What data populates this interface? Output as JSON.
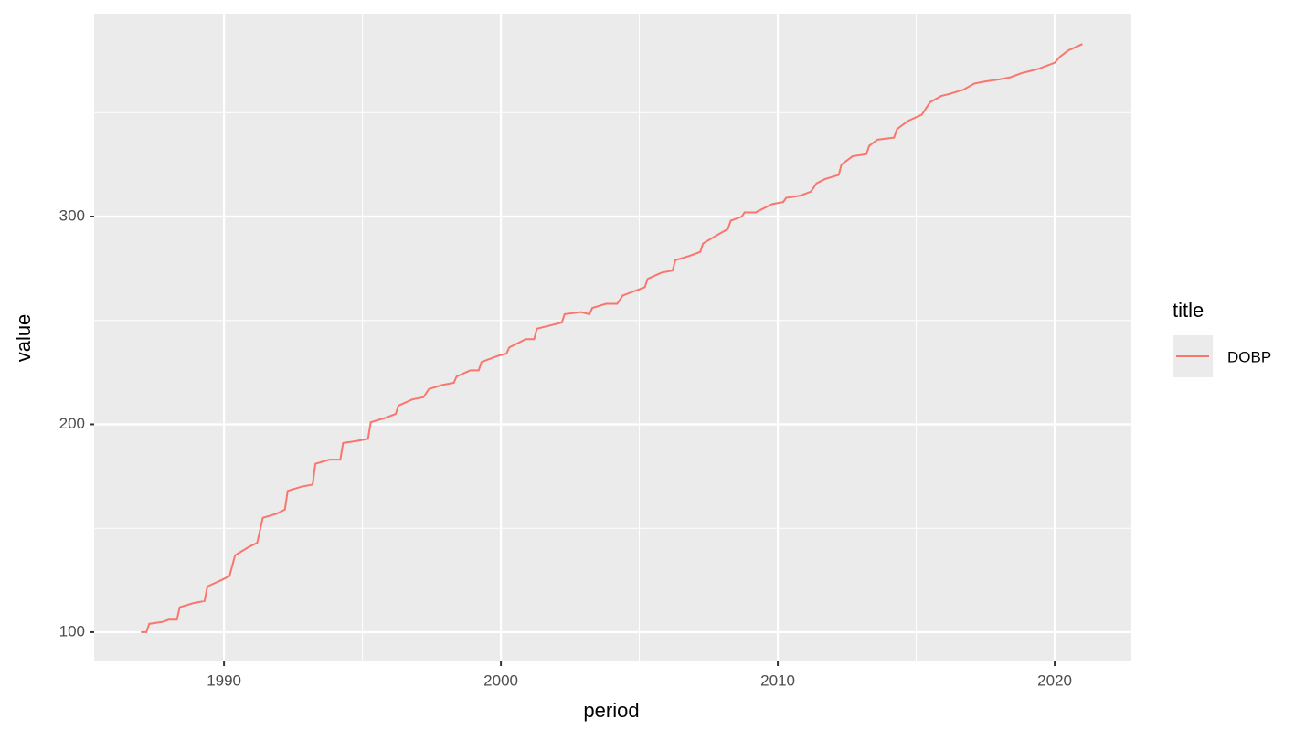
{
  "chart_data": {
    "type": "line",
    "x_label": "period",
    "y_label": "value",
    "legend_title": "title",
    "legend_position": "right",
    "grid": true,
    "xlim": [
      1985.31,
      2022.77
    ],
    "xticks": [
      1990,
      2000,
      2010,
      2020
    ],
    "xminorticks": [
      1995,
      2005,
      2015
    ],
    "ylim": [
      85.9,
      397.6
    ],
    "yticks": [
      100,
      200,
      300
    ],
    "yminorticks": [
      150,
      250,
      350
    ],
    "x": [
      1987.0,
      1987.2,
      1987.3,
      1987.8,
      1988.0,
      1988.3,
      1988.4,
      1988.9,
      1989.3,
      1989.4,
      1989.9,
      1990.2,
      1990.4,
      1990.9,
      1991.2,
      1991.4,
      1991.9,
      1992.2,
      1992.3,
      1992.8,
      1993.2,
      1993.3,
      1993.8,
      1994.2,
      1994.3,
      1994.8,
      1995.2,
      1995.3,
      1995.8,
      1996.2,
      1996.3,
      1996.8,
      1997.2,
      1997.4,
      1997.9,
      1998.3,
      1998.4,
      1998.9,
      1999.2,
      1999.3,
      1999.9,
      2000.2,
      2000.3,
      2000.9,
      2001.2,
      2001.3,
      2001.9,
      2002.2,
      2002.3,
      2002.9,
      2003.2,
      2003.3,
      2003.8,
      2004.2,
      2004.4,
      2004.8,
      2005.2,
      2005.3,
      2005.8,
      2006.2,
      2006.3,
      2006.8,
      2007.2,
      2007.3,
      2007.8,
      2008.2,
      2008.3,
      2008.7,
      2008.8,
      2009.2,
      2009.5,
      2009.8,
      2010.2,
      2010.3,
      2010.8,
      2011.2,
      2011.4,
      2011.7,
      2012.2,
      2012.3,
      2012.7,
      2013.2,
      2013.3,
      2013.6,
      2014.2,
      2014.3,
      2014.7,
      2015.2,
      2015.5,
      2015.9,
      2016.2,
      2016.7,
      2017.1,
      2017.5,
      2018.0,
      2018.4,
      2018.8,
      2019.4,
      2020.0,
      2020.2,
      2020.5,
      2021.0
    ],
    "series": [
      {
        "name": "DOBP",
        "color": "#f8766d",
        "values": [
          100,
          100,
          104,
          105,
          106,
          106,
          112,
          114,
          115,
          122,
          125,
          127,
          137,
          141,
          143,
          155,
          157,
          159,
          168,
          170,
          171,
          181,
          183,
          183,
          191,
          192,
          193,
          201,
          203,
          205,
          209,
          212,
          213,
          217,
          219,
          220,
          223,
          226,
          226,
          230,
          233,
          234,
          237,
          241,
          241,
          246,
          248,
          249,
          253,
          254,
          253,
          256,
          258,
          258,
          262,
          264,
          266,
          270,
          273,
          274,
          279,
          281,
          283,
          287,
          291,
          294,
          298,
          300,
          302,
          302,
          304,
          306,
          307,
          309,
          310,
          312,
          316,
          318,
          320,
          325,
          329,
          330,
          334,
          337,
          338,
          342,
          346,
          349,
          355,
          358,
          359,
          361,
          364,
          365,
          366,
          367,
          369,
          371,
          374,
          377,
          380,
          383
        ]
      }
    ]
  }
}
